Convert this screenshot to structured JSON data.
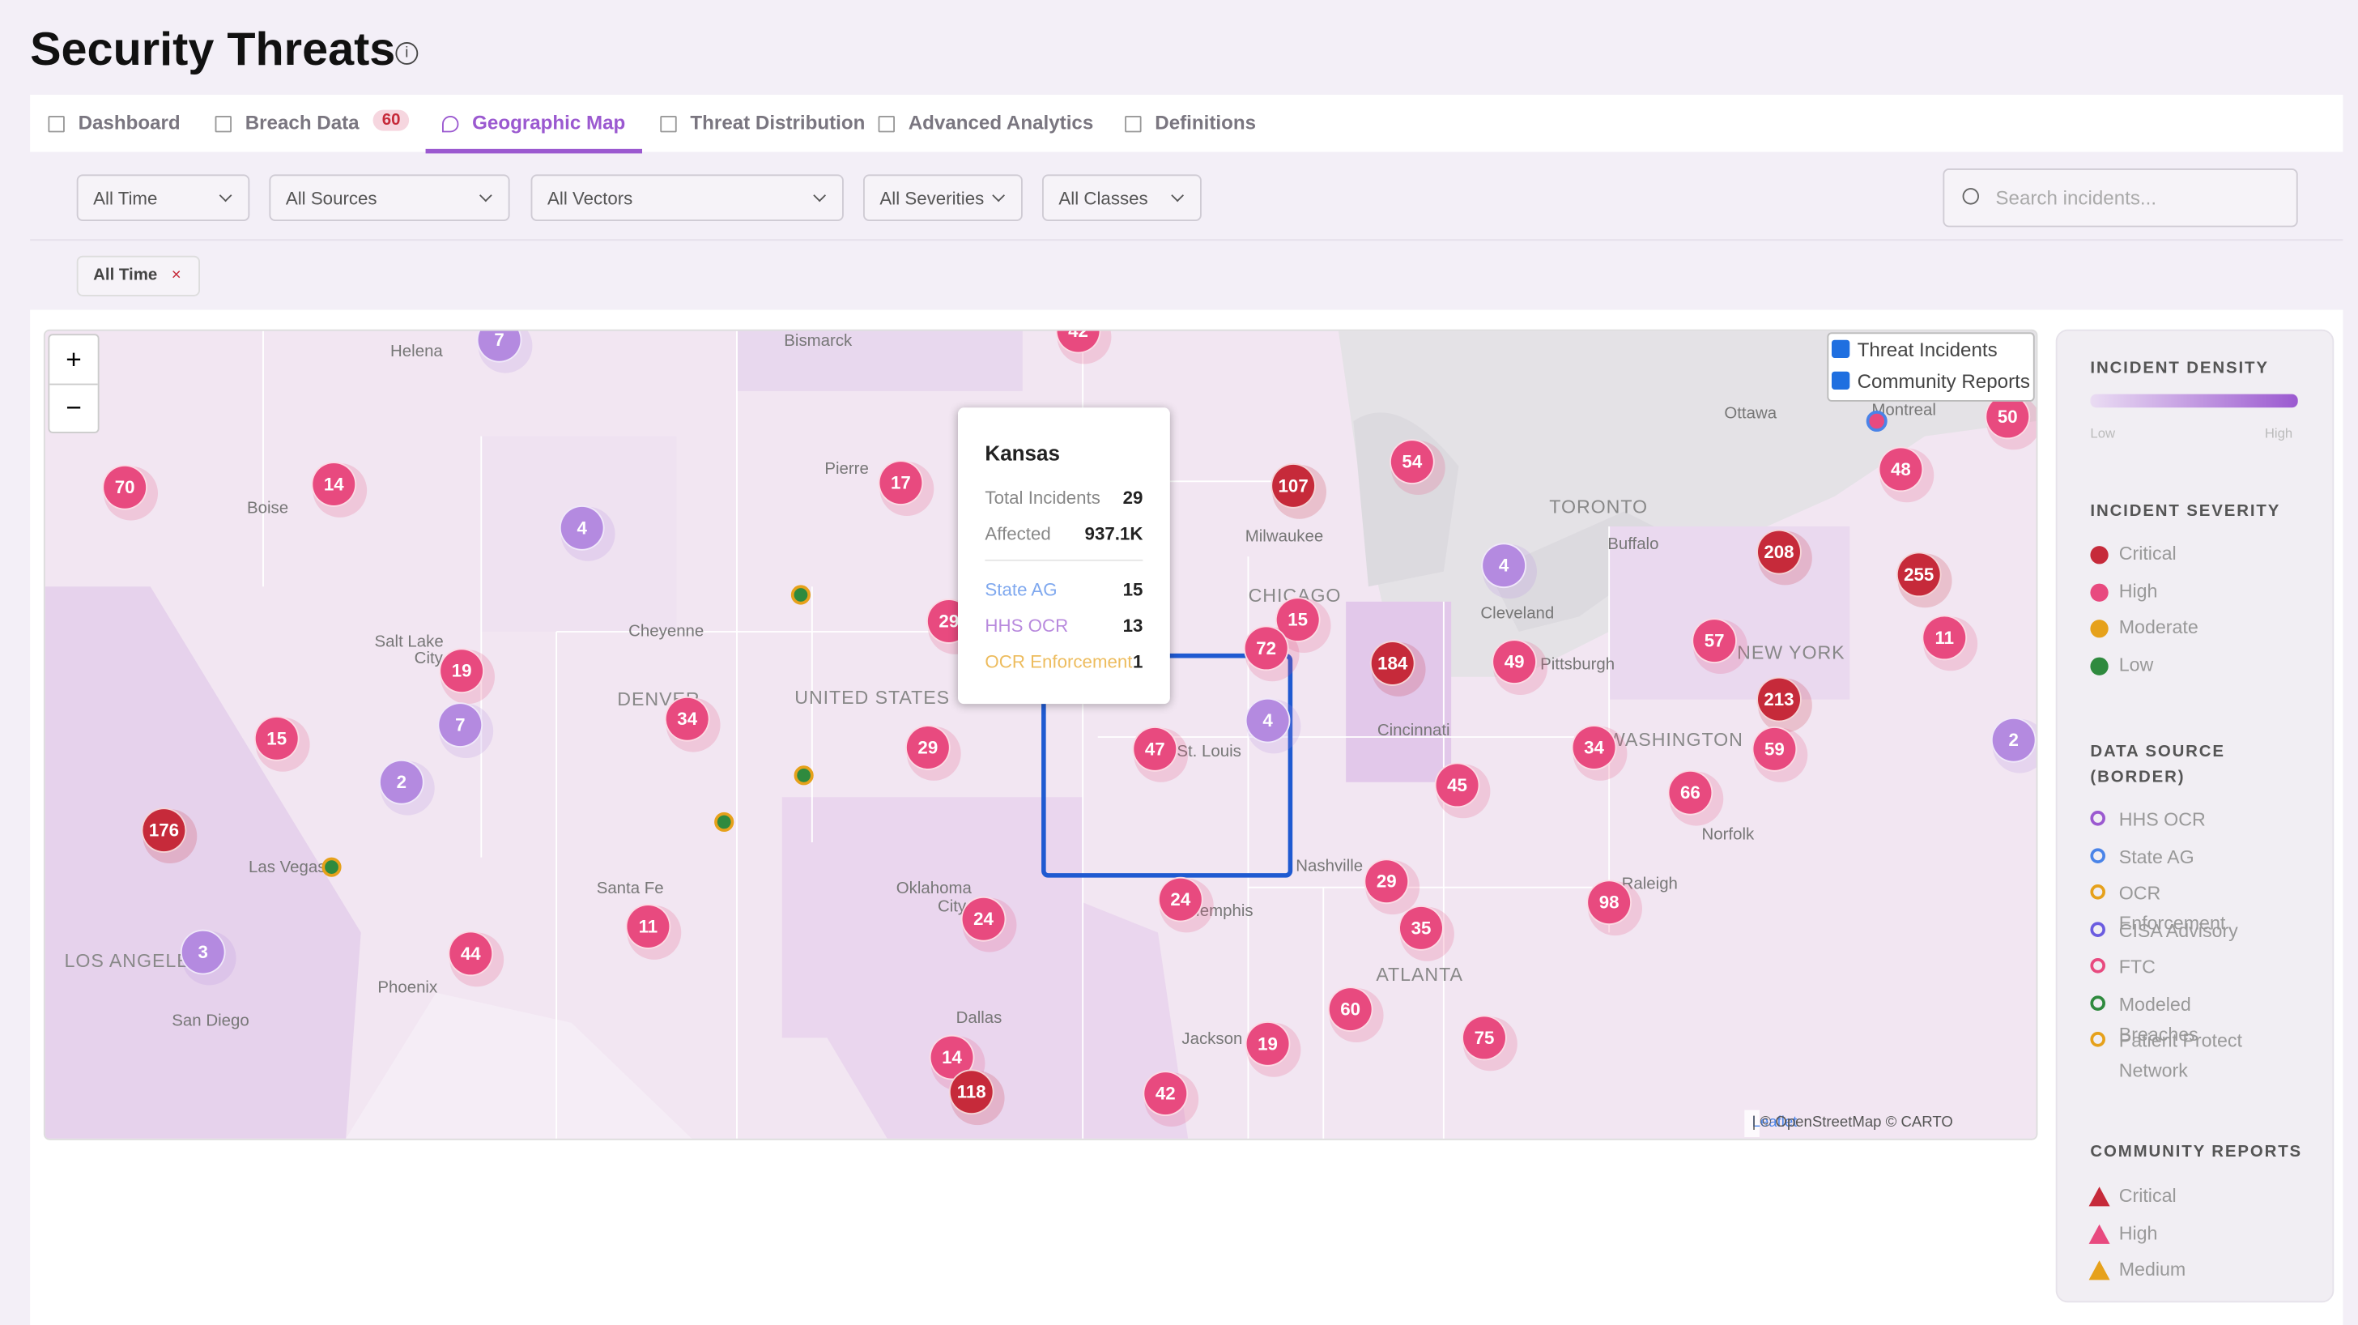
{
  "header": {
    "title": "Security Threats"
  },
  "tabs": [
    {
      "label": "Dashboard"
    },
    {
      "label": "Breach Data",
      "badge": "60"
    },
    {
      "label": "Geographic Map"
    },
    {
      "label": "Threat Distribution"
    },
    {
      "label": "Advanced Analytics"
    },
    {
      "label": "Definitions"
    }
  ],
  "filters": [
    "All Time",
    "All Sources",
    "All Vectors",
    "All Severities",
    "All Classes"
  ],
  "search": {
    "placeholder": "Search incidents..."
  },
  "chips": [
    {
      "label": "All Time",
      "remove": "×"
    }
  ],
  "map": {
    "zoom_in": "+",
    "zoom_out": "−",
    "layers": [
      "Threat Incidents",
      "Community Reports"
    ],
    "attribution": {
      "link": "Leaflet",
      "text": "| © OpenStreetMap © CARTO"
    },
    "cities": [
      "Helena",
      "Bismarck",
      "Boise",
      "Pierre",
      "Ottawa",
      "Montreal",
      "TORONTO",
      "Milwaukee",
      "Buffalo",
      "Salt Lake",
      "City",
      "Cheyenne",
      "CHICAGO",
      "Cleveland",
      "Pittsburgh",
      "NEW YORK",
      "DENVER",
      "UNITED STATES",
      "Cincinnati",
      "WASHINGTON",
      "St. Louis",
      "Norfolk",
      "Las Vegas",
      "Nashville",
      "Santa Fe",
      "Oklahoma",
      "City",
      "Memphis",
      "Raleigh",
      "LOS ANGELES",
      "ATLANTA",
      "Phoenix",
      "San Diego",
      "Dallas",
      "Jackson"
    ],
    "clusters": [
      "7",
      "42",
      "70",
      "14",
      "4",
      "17",
      "107",
      "54",
      "50",
      "48",
      "4",
      "208",
      "255",
      "19",
      "7",
      "15",
      "2",
      "34",
      "29",
      "15",
      "72",
      "184",
      "49",
      "57",
      "11",
      "213",
      "59",
      "2",
      "29",
      "47",
      "4",
      "34",
      "45",
      "66",
      "176",
      "3",
      "44",
      "11",
      "24",
      "24",
      "29",
      "35",
      "98",
      "60",
      "75",
      "19",
      "14",
      "118",
      "42"
    ],
    "tooltip": {
      "title": "Kansas",
      "rows": [
        {
          "label": "Total Incidents",
          "value": "29"
        },
        {
          "label": "Affected",
          "value": "937.1K"
        }
      ],
      "sources": [
        {
          "label": "State AG",
          "value": "15"
        },
        {
          "label": "HHS OCR",
          "value": "13"
        },
        {
          "label": "OCR Enforcement",
          "value": "1"
        }
      ]
    }
  },
  "legend": {
    "density": {
      "title": "INCIDENT DENSITY",
      "low": "Low",
      "high": "High"
    },
    "severity": {
      "title": "INCIDENT SEVERITY",
      "items": [
        "Critical",
        "High",
        "Moderate",
        "Low"
      ]
    },
    "source": {
      "title": "DATA SOURCE (BORDER)",
      "items": [
        "HHS OCR",
        "State AG",
        "OCR Enforcement",
        "CISA Advisory",
        "FTC",
        "Modeled Breaches",
        "Patient Protect Network"
      ]
    },
    "community": {
      "title": "COMMUNITY REPORTS",
      "items": [
        "Critical",
        "High",
        "Medium"
      ]
    }
  }
}
